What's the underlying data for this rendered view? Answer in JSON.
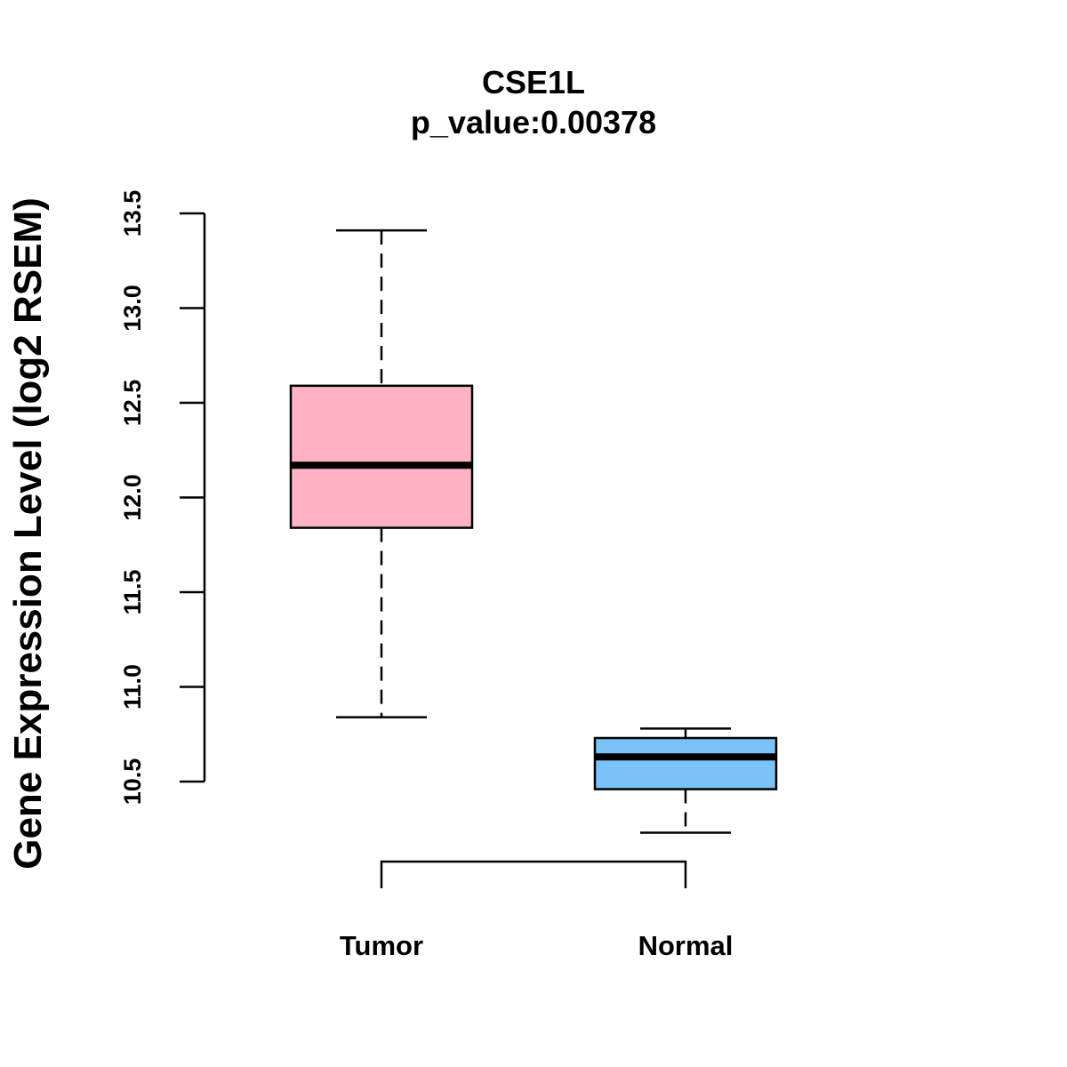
{
  "chart_data": {
    "type": "boxplot",
    "title": "CSE1L",
    "subtitle": "p_value:0.00378",
    "xlabel": "",
    "ylabel": "Gene Expression Level (log2 RSEM)",
    "ylim": [
      10.5,
      13.5
    ],
    "yticks": [
      "10.5",
      "11.0",
      "11.5",
      "12.0",
      "12.5",
      "13.0",
      "13.5"
    ],
    "grid": false,
    "groups": [
      {
        "name": "Tumor",
        "color": "#FFB3C4",
        "whisker_low": 10.84,
        "q1": 11.84,
        "median": 12.17,
        "q3": 12.59,
        "whisker_high": 13.41
      },
      {
        "name": "Normal",
        "color": "#7BC3F7",
        "whisker_low": 10.23,
        "q1": 10.46,
        "median": 10.63,
        "q3": 10.73,
        "whisker_high": 10.78
      }
    ],
    "bracket": {
      "between": [
        "Tumor",
        "Normal"
      ]
    }
  }
}
